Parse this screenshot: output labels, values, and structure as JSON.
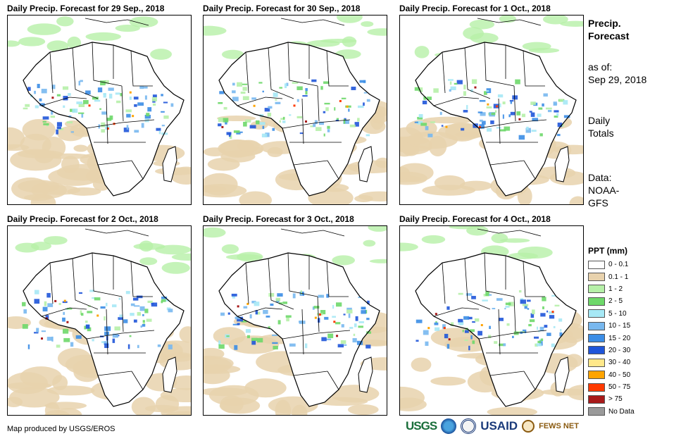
{
  "panels": [
    {
      "title": "Daily Precip. Forecast for 29  Sep., 2018"
    },
    {
      "title": "Daily Precip. Forecast for 30  Sep., 2018"
    },
    {
      "title": "Daily Precip. Forecast for 1 Oct., 2018"
    },
    {
      "title": "Daily Precip. Forecast for 2 Oct., 2018"
    },
    {
      "title": "Daily Precip. Forecast for 3 Oct., 2018"
    },
    {
      "title": "Daily Precip. Forecast for 4 Oct., 2018"
    }
  ],
  "sidebar": {
    "heading_line1": "Precip.",
    "heading_line2": "Forecast",
    "asof_label": "as of:",
    "asof_date": "Sep 29, 2018",
    "totals_line1": "Daily",
    "totals_line2": "Totals",
    "data_line1": "Data:",
    "data_line2": "NOAA-",
    "data_line3": "GFS"
  },
  "legend": {
    "title": "PPT (mm)",
    "items": [
      {
        "label": "0 - 0.1",
        "color": "#ffffff"
      },
      {
        "label": "0.1 - 1",
        "color": "#e8d2ad"
      },
      {
        "label": "1 - 2",
        "color": "#b6f0a8"
      },
      {
        "label": "2 - 5",
        "color": "#6ed86a"
      },
      {
        "label": "5 - 10",
        "color": "#a6e8f5"
      },
      {
        "label": "10 - 15",
        "color": "#78b8ef"
      },
      {
        "label": "15 - 20",
        "color": "#3b8de6"
      },
      {
        "label": "20 - 30",
        "color": "#1f55d9"
      },
      {
        "label": "30 - 40",
        "color": "#ffe88a"
      },
      {
        "label": "40 - 50",
        "color": "#ffa400"
      },
      {
        "label": "50 - 75",
        "color": "#ff3a00"
      },
      {
        "label": "> 75",
        "color": "#a81a1a"
      },
      {
        "label": "No Data",
        "color": "#9a9a9a"
      }
    ]
  },
  "footer": {
    "credit": "Map produced by USGS/EROS"
  },
  "logos": {
    "usgs": "USGS",
    "usaid": "USAID",
    "fews": "FEWS NET"
  }
}
